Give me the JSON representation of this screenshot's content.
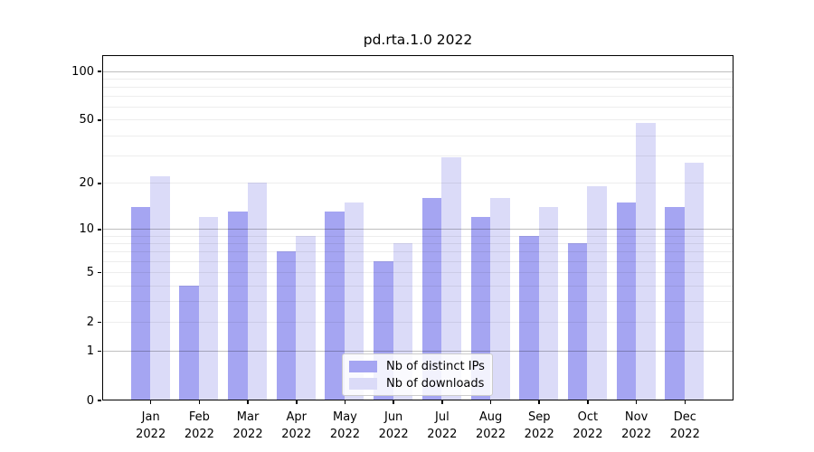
{
  "chart_data": {
    "type": "bar",
    "title": "pd.rta.1.0 2022",
    "categories": [
      "Jan 2022",
      "Feb 2022",
      "Mar 2022",
      "Apr 2022",
      "May 2022",
      "Jun 2022",
      "Jul 2022",
      "Aug 2022",
      "Sep 2022",
      "Oct 2022",
      "Nov 2022",
      "Dec 2022"
    ],
    "series": [
      {
        "name": "Nb of distinct IPs",
        "color": "#a5a5f2",
        "values": [
          14,
          4,
          13,
          7,
          13,
          6,
          16,
          12,
          9,
          8,
          15,
          14
        ]
      },
      {
        "name": "Nb of downloads",
        "color": "#dbdbf8",
        "values": [
          22,
          12,
          20,
          9,
          15,
          8,
          29,
          16,
          14,
          19,
          48,
          27
        ]
      }
    ],
    "xlabel": "",
    "ylabel": "",
    "yscale": "log1p",
    "ylim": [
      0,
      126
    ],
    "y_tick_values": [
      100,
      50,
      20,
      10,
      5,
      2,
      1,
      0
    ],
    "y_tick_labels": [
      "100",
      "50",
      "20",
      "10",
      "5",
      "2",
      "1",
      "0"
    ],
    "grid": {
      "on": true,
      "major_values": [
        1,
        10,
        100
      ],
      "minor_values": [
        2,
        3,
        4,
        5,
        6,
        7,
        8,
        9,
        20,
        30,
        40,
        50,
        60,
        70,
        80,
        90
      ],
      "major_color": "rgba(0,0,0,0.25)",
      "minor_color": "rgba(0,0,0,0.07)"
    },
    "legend": {
      "position": "lower center",
      "entries": [
        "Nb of distinct IPs",
        "Nb of downloads"
      ]
    }
  },
  "colors": {
    "ips_bar": "#a5a5f2",
    "downloads_bar": "#dbdbf8",
    "axis": "#000000",
    "background": "#ffffff"
  }
}
